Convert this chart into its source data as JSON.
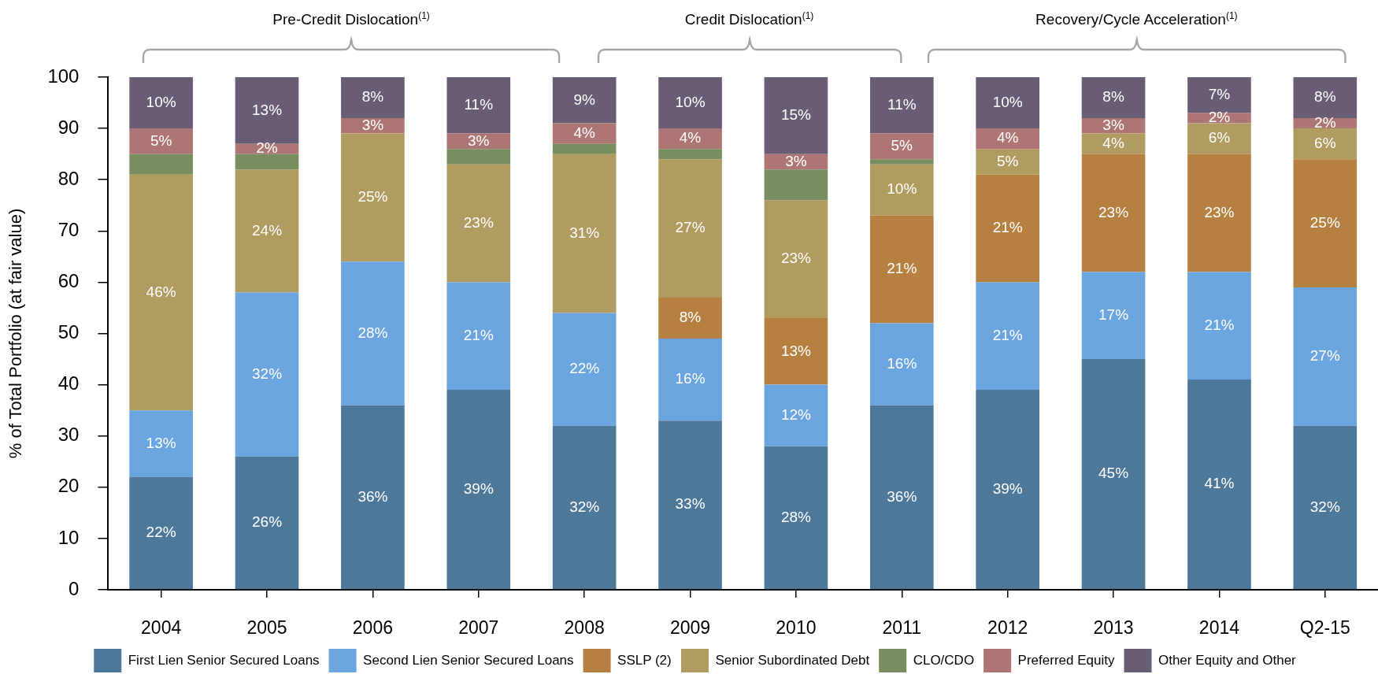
{
  "chart_data": {
    "type": "bar",
    "stacked": true,
    "categories": [
      "2004",
      "2005",
      "2006",
      "2007",
      "2008",
      "2009",
      "2010",
      "2011",
      "2012",
      "2013",
      "2014",
      "Q2-15"
    ],
    "ylabel": "% of Total Portfolio (at fair value)",
    "ylim": [
      0,
      100
    ],
    "yticks": [
      0,
      10,
      20,
      30,
      40,
      50,
      60,
      70,
      80,
      90,
      100
    ],
    "grid": false,
    "legend": "bottom",
    "annotations": [
      "Pre-Credit Dislocation$^{(1)}$",
      "Credit Dislocation$^{(1)}$",
      "Recovery/Cycle Acceleration$^{(1)}$"
    ],
    "series": [
      {
        "name": "First Lien Senior Secured Loans",
        "color": "#4e7899",
        "values": [
          22,
          26,
          36,
          39,
          32,
          33,
          28,
          36,
          39,
          45,
          41,
          32
        ],
        "value_labels": [
          "22%",
          "26%",
          "36%",
          "39%",
          "32%",
          "33%",
          "28%",
          "36%",
          "39%",
          "45%",
          "41%",
          "32%"
        ]
      },
      {
        "name": "Second Lien Senior Secured Loans",
        "color": "#6ba5e0",
        "values": [
          13,
          32,
          28,
          21,
          22,
          16,
          12,
          16,
          21,
          17,
          21,
          27
        ],
        "value_labels": [
          "13%",
          "32%",
          "28%",
          "21%",
          "22%",
          "16%",
          "12%",
          "16%",
          "21%",
          "17%",
          "21%",
          "27%"
        ]
      },
      {
        "name": "SSLP (2)",
        "color": "#b68140",
        "values": [
          0,
          0,
          0,
          0,
          0,
          8,
          13,
          21,
          21,
          23,
          23,
          25
        ],
        "value_labels": [
          null,
          null,
          null,
          null,
          null,
          "8%",
          "13%",
          "21%",
          "21%",
          "23%",
          "23%",
          "25%"
        ]
      },
      {
        "name": "Senior Subordinated Debt",
        "color": "#b09b60",
        "values": [
          46,
          24,
          25,
          23,
          31,
          27,
          23,
          10,
          5,
          4,
          6,
          6
        ],
        "value_labels": [
          "46%",
          "24%",
          "25%",
          "23%",
          "31%",
          "27%",
          "23%",
          "10%",
          "5%",
          "4%",
          "6%",
          "6%"
        ]
      },
      {
        "name": "CLO/CDO",
        "color": "#788e5f",
        "values": [
          4,
          3,
          0,
          3,
          2,
          2,
          6,
          1,
          0,
          0,
          0,
          0
        ],
        "value_labels": [
          null,
          null,
          null,
          null,
          null,
          null,
          null,
          null,
          null,
          null,
          null,
          null
        ]
      },
      {
        "name": "Preferred Equity",
        "color": "#ad7574",
        "values": [
          5,
          2,
          3,
          3,
          4,
          4,
          3,
          5,
          4,
          3,
          2,
          2
        ],
        "value_labels": [
          "5%",
          "2%",
          "3%",
          "3%",
          "4%",
          "4%",
          "3%",
          "5%",
          "4%",
          "3%",
          "2%",
          "2%"
        ]
      },
      {
        "name": "Other Equity and Other",
        "color": "#685d75",
        "values": [
          10,
          13,
          8,
          11,
          9,
          10,
          15,
          11,
          10,
          8,
          7,
          8
        ],
        "value_labels": [
          "10%",
          "13%",
          "8%",
          "11%",
          "9%",
          "10%",
          "15%",
          "11%",
          "10%",
          "8%",
          "7%",
          "8%"
        ]
      }
    ]
  }
}
